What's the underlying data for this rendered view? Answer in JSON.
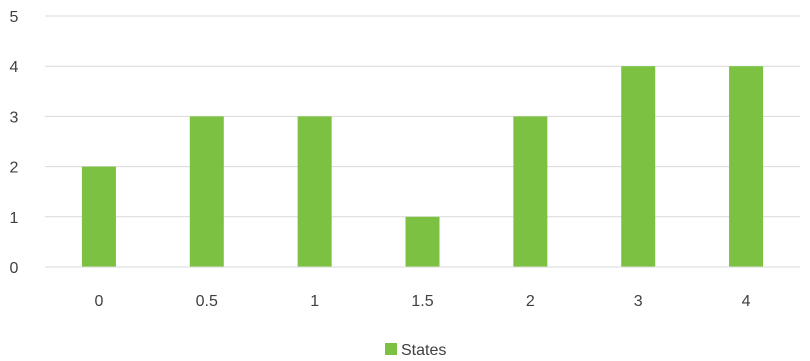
{
  "chart_data": {
    "type": "bar",
    "categories": [
      "0",
      "0.5",
      "1",
      "1.5",
      "2",
      "3",
      "4"
    ],
    "series": [
      {
        "name": "States",
        "values": [
          2,
          3,
          3,
          1,
          3,
          4,
          4
        ],
        "color": "#7cc142"
      }
    ],
    "ylim": [
      0,
      5
    ],
    "yticks": [
      0,
      1,
      2,
      3,
      4,
      5
    ],
    "grid": true,
    "legend_position": "bottom"
  }
}
